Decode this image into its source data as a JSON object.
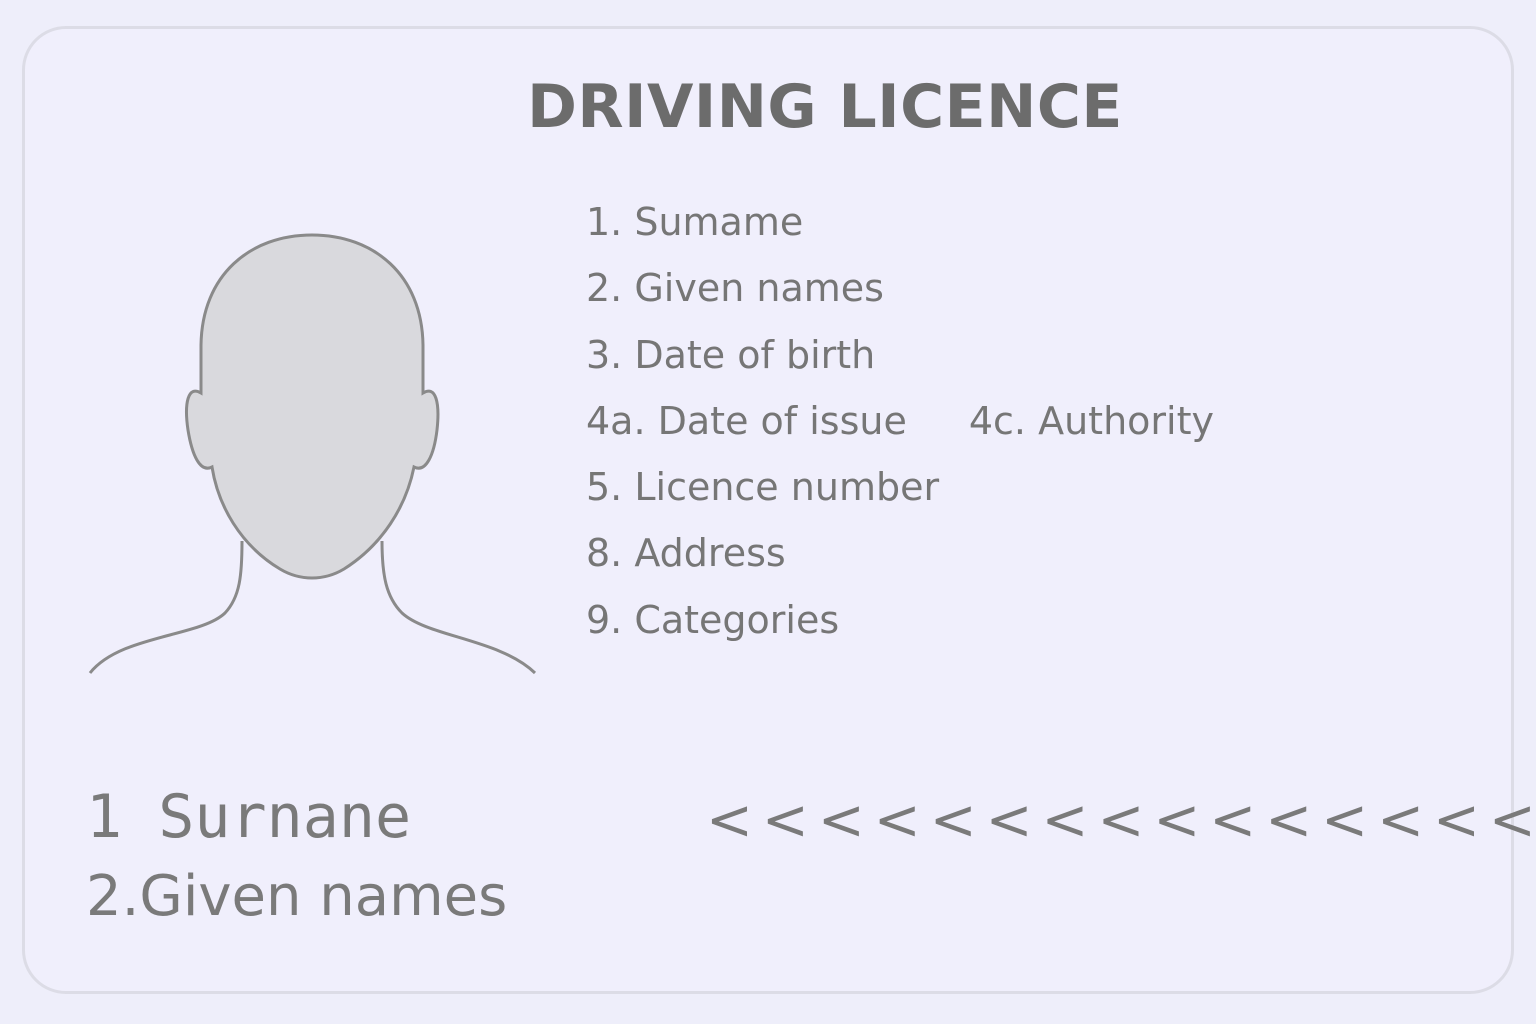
{
  "card": {
    "title": "DRIVING LICENCE",
    "portrait_icon": "person-silhouette-icon",
    "fields": [
      {
        "label": "1. Sumame"
      },
      {
        "label": "2. Given names"
      },
      {
        "label": "3. Date of birth"
      },
      {
        "label": "4a. Date of issue",
        "extra": "4c. Authority"
      },
      {
        "label": "5. Licence number"
      },
      {
        "label": "8. Address"
      },
      {
        "label": "9. Categories"
      }
    ],
    "bottom": {
      "line1": "1 Surnane",
      "line2": "2.Given names",
      "filler": "<<<<<<<<<<<<<<<<"
    }
  },
  "colors": {
    "background": "#eeeefa",
    "card": "#f0effc",
    "text": "#767676",
    "portrait_fill": "#d9d9dd",
    "portrait_stroke": "#8a8a8a"
  }
}
